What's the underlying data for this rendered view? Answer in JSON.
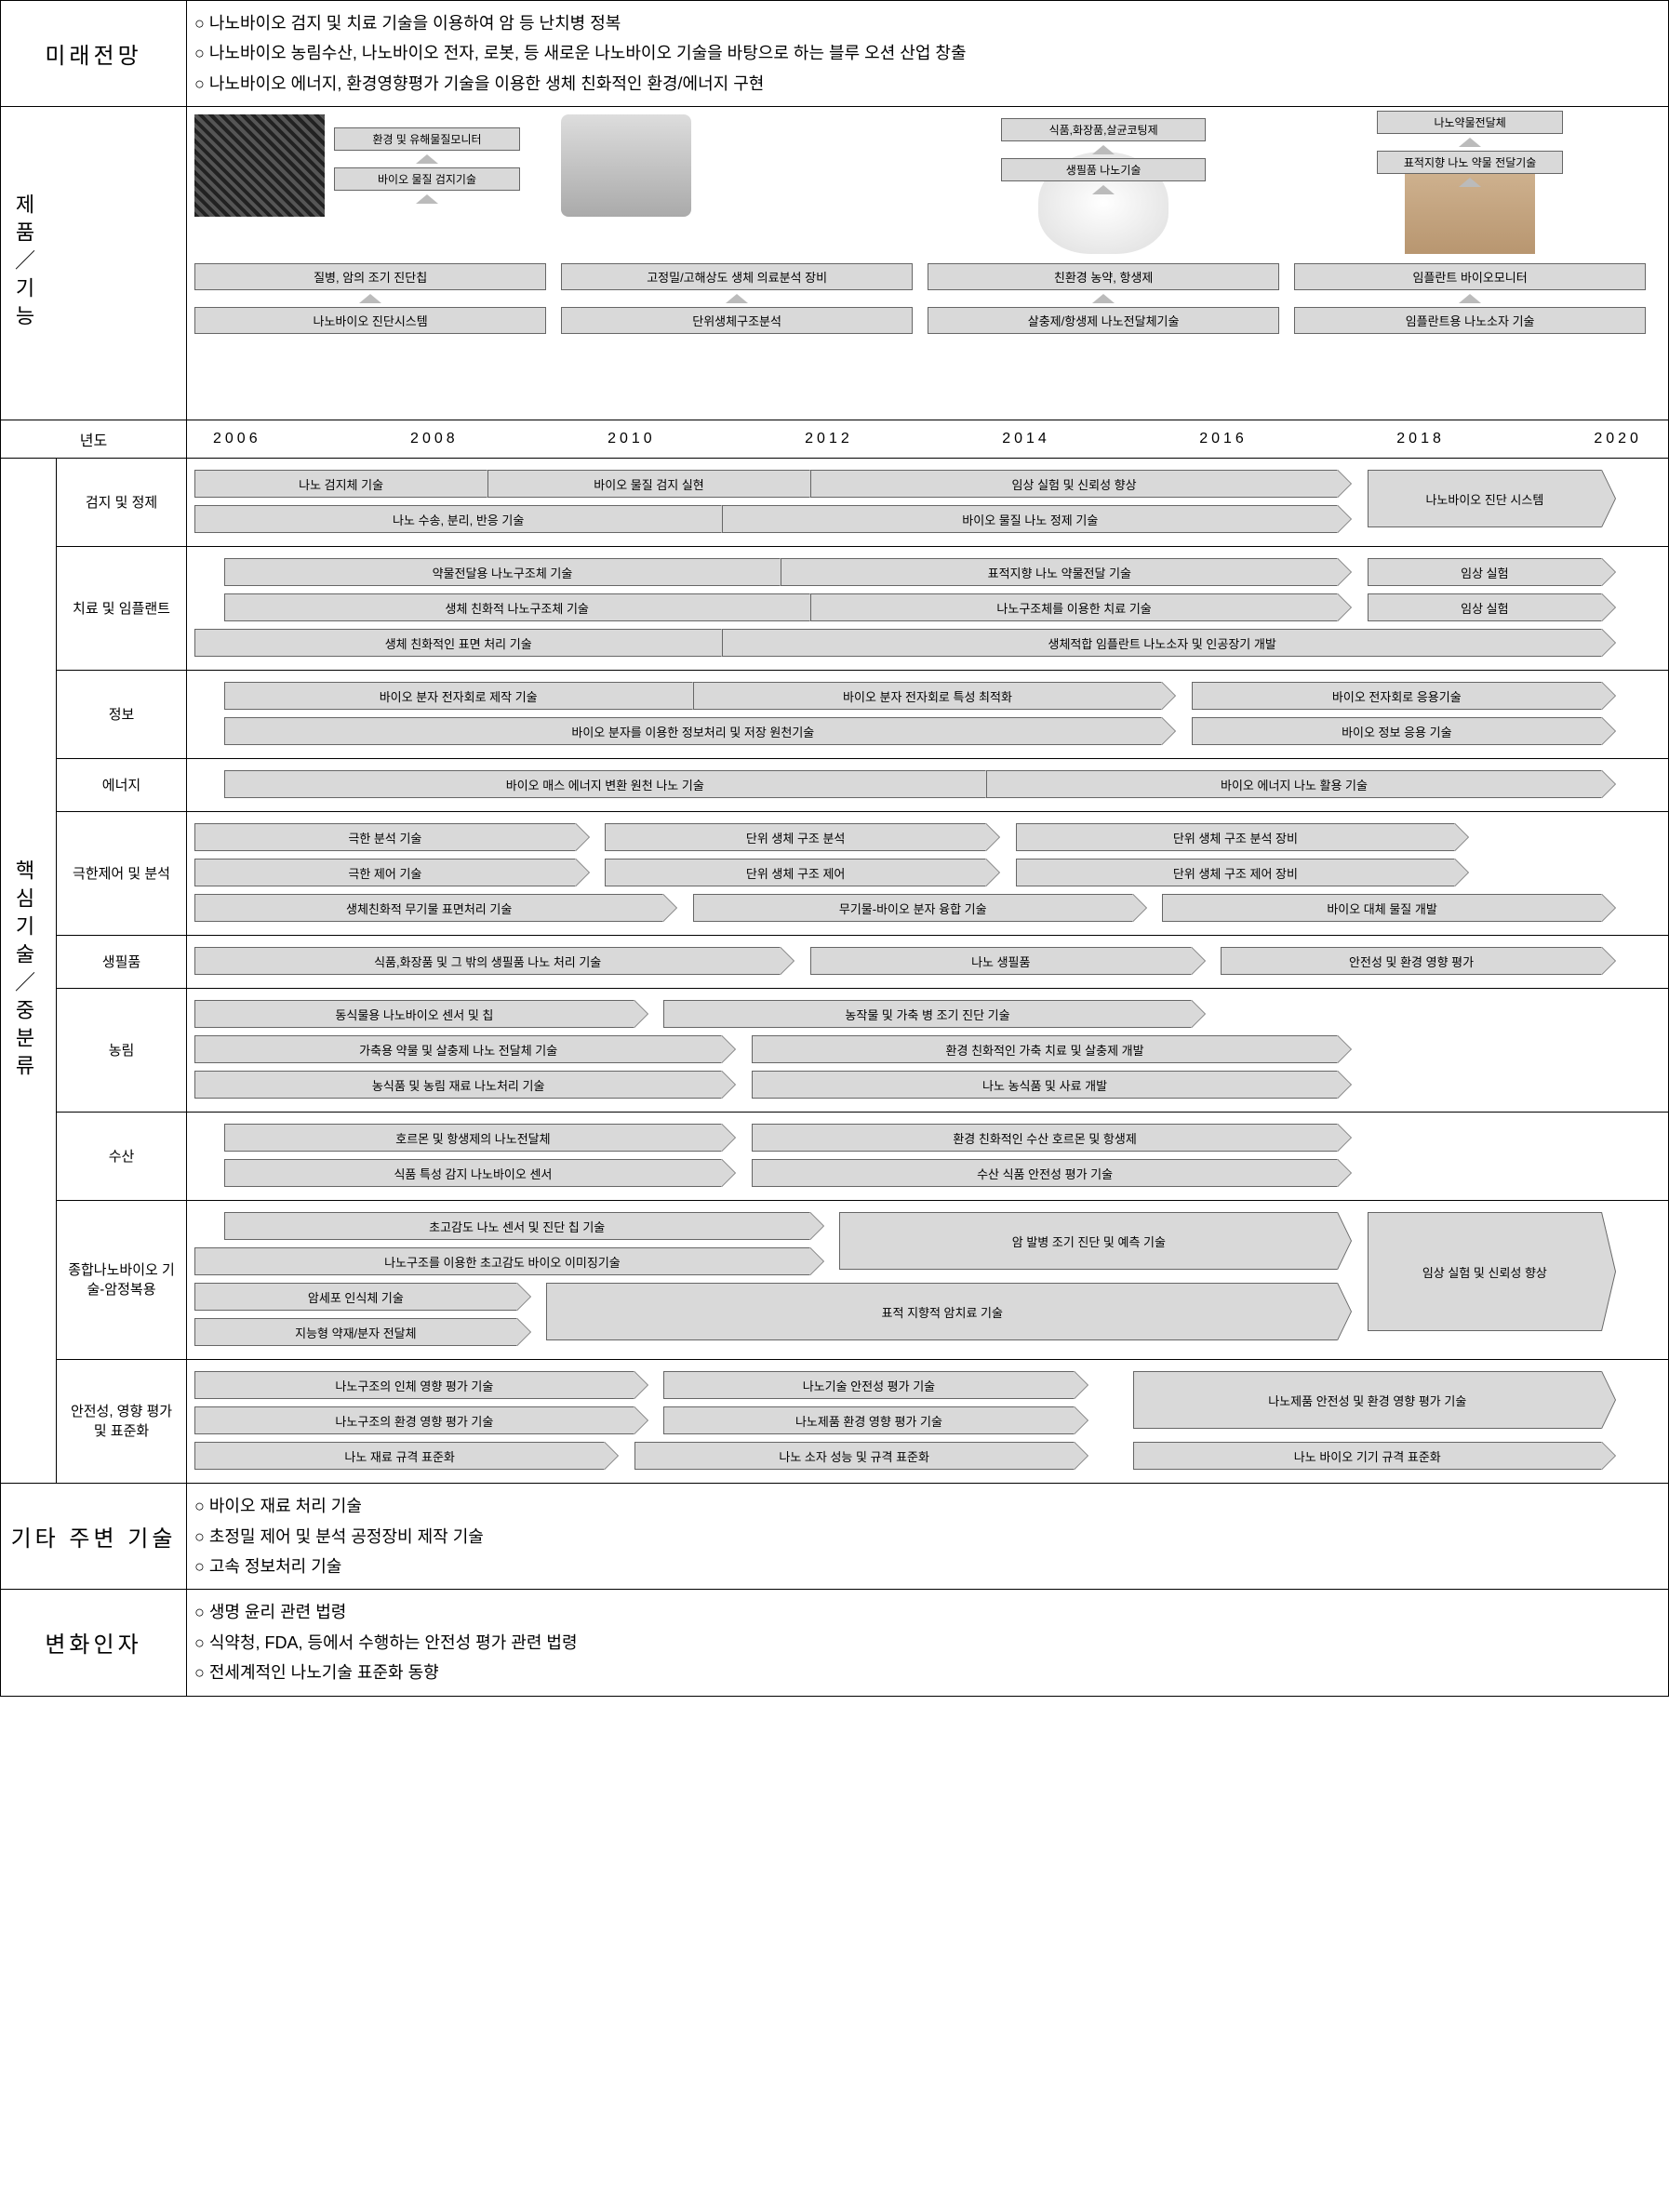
{
  "sections": {
    "future": {
      "title": "미래전망",
      "bullets": [
        "나노바이오 검지 및 치료 기술을 이용하여 암 등 난치병 정복",
        "나노바이오 농림수산, 나노바이오 전자, 로봇, 등 새로운 나노바이오 기술을 바탕으로 하는 블루 오션 산업 창출",
        "나노바이오 에너지, 환경영향평가 기술을 이용한 생체 친화적인 환경/에너지 구현"
      ]
    },
    "products": {
      "title": "제품／기능",
      "columns": [
        {
          "top_labels": [
            "환경 및 유해물질모니터",
            "바이오 물질 검지기술"
          ],
          "mid": "질병, 암의 조기 진단칩",
          "bottom": "나노바이오 진단시스템"
        },
        {
          "top_labels": [],
          "mid": "고정밀/고해상도 생체 의료분석 장비",
          "bottom": "단위생체구조분석"
        },
        {
          "top_labels": [
            "식품,화장품,살균코팅제",
            "생필품 나노기술"
          ],
          "mid": "친환경 농약, 항생제",
          "bottom": "살충제/항생제 나노전달체기술"
        },
        {
          "top_labels": [
            "나노약물전달체",
            "표적지향 나노 약물 전달기술"
          ],
          "mid": "임플란트 바이오모니터",
          "bottom": "임플란트용 나노소자 기술"
        }
      ]
    },
    "years": {
      "label": "년도",
      "values": [
        "2006",
        "2008",
        "2010",
        "2012",
        "2014",
        "2016",
        "2018",
        "2020"
      ]
    },
    "core": {
      "title": "핵심기술／중분류",
      "categories": [
        {
          "label": "검지 및 정제",
          "rows": [
            [
              {
                "text": "나노 검지체 기술",
                "start": 0,
                "end": 20
              },
              {
                "text": "바이오 물질 검지 실현",
                "start": 20,
                "end": 42
              },
              {
                "text": "임상 실험 및 신뢰성 향상",
                "start": 42,
                "end": 78
              },
              {
                "text": "나노바이오 진단 시스템",
                "start": 80,
                "end": 96,
                "tall": true
              }
            ],
            [
              {
                "text": "나노 수송, 분리, 반응 기술",
                "start": 0,
                "end": 36
              },
              {
                "text": "바이오 물질 나노 정제 기술",
                "start": 36,
                "end": 78
              }
            ]
          ]
        },
        {
          "label": "치료 및 임플랜트",
          "rows": [
            [
              {
                "text": "약물전달용 나노구조체 기술",
                "start": 2,
                "end": 40
              },
              {
                "text": "표적지향 나노 약물전달 기술",
                "start": 40,
                "end": 78
              },
              {
                "text": "임상 실험",
                "start": 80,
                "end": 96
              }
            ],
            [
              {
                "text": "생체 친화적 나노구조체 기술",
                "start": 2,
                "end": 42
              },
              {
                "text": "나노구조체를 이용한 치료 기술",
                "start": 42,
                "end": 78
              },
              {
                "text": "임상 실험",
                "start": 80,
                "end": 96
              }
            ],
            [
              {
                "text": "생체 친화적인 표면 처리 기술",
                "start": 0,
                "end": 36
              },
              {
                "text": "생체적합 임플란트 나노소자 및 인공장기 개발",
                "start": 36,
                "end": 96
              }
            ]
          ]
        },
        {
          "label": "정보",
          "rows": [
            [
              {
                "text": "바이오 분자 전자회로 제작 기술",
                "start": 2,
                "end": 34
              },
              {
                "text": "바이오 분자 전자회로 특성 최적화",
                "start": 34,
                "end": 66
              },
              {
                "text": "바이오 전자회로 응용기술",
                "start": 68,
                "end": 96
              }
            ],
            [
              {
                "text": "바이오 분자를 이용한 정보처리 및 저장 원천기술",
                "start": 2,
                "end": 66
              },
              {
                "text": "바이오 정보 응용 기술",
                "start": 68,
                "end": 96
              }
            ]
          ]
        },
        {
          "label": "에너지",
          "rows": [
            [
              {
                "text": "바이오 매스 에너지 변환 원천 나노 기술",
                "start": 2,
                "end": 54
              },
              {
                "text": "바이오 에너지 나노 활용 기술",
                "start": 54,
                "end": 96
              }
            ]
          ]
        },
        {
          "label": "극한제어 및 분석",
          "rows": [
            [
              {
                "text": "극한 분석 기술",
                "start": 0,
                "end": 26
              },
              {
                "text": "단위 생체 구조 분석",
                "start": 28,
                "end": 54
              },
              {
                "text": "단위 생체 구조 분석 장비",
                "start": 56,
                "end": 86
              }
            ],
            [
              {
                "text": "극한 제어 기술",
                "start": 0,
                "end": 26
              },
              {
                "text": "단위 생체 구조 제어",
                "start": 28,
                "end": 54
              },
              {
                "text": "단위 생체 구조 제어 장비",
                "start": 56,
                "end": 86
              }
            ],
            [
              {
                "text": "생체친화적 무기물 표면처리 기술",
                "start": 0,
                "end": 32
              },
              {
                "text": "무기물-바이오 분자 융합 기술",
                "start": 34,
                "end": 64
              },
              {
                "text": "바이오 대체 물질 개발",
                "start": 66,
                "end": 96
              }
            ]
          ]
        },
        {
          "label": "생필품",
          "rows": [
            [
              {
                "text": "식품,화장품 및 그 밖의 생필품  나노 처리 기술",
                "start": 0,
                "end": 40
              },
              {
                "text": "나노 생필품",
                "start": 42,
                "end": 68
              },
              {
                "text": "안전성 및 환경 영향 평가",
                "start": 70,
                "end": 96
              }
            ]
          ]
        },
        {
          "label": "농림",
          "rows": [
            [
              {
                "text": "동식물용 나노바이오 센서 및 칩",
                "start": 0,
                "end": 30
              },
              {
                "text": "농작물 및 가축 병 조기 진단 기술",
                "start": 32,
                "end": 68
              }
            ],
            [
              {
                "text": "가축용 약물 및 살충제 나노 전달체 기술",
                "start": 0,
                "end": 36
              },
              {
                "text": "환경 친화적인 가축 치료 및 살충제 개발",
                "start": 38,
                "end": 78
              }
            ],
            [
              {
                "text": "농식품 및 농림 재료 나노처리 기술",
                "start": 0,
                "end": 36
              },
              {
                "text": "나노 농식품 및 사료 개발",
                "start": 38,
                "end": 78
              }
            ]
          ]
        },
        {
          "label": "수산",
          "rows": [
            [
              {
                "text": "호르몬 및 항생제의 나노전달체",
                "start": 2,
                "end": 36
              },
              {
                "text": "환경 친화적인 수산 호르몬 및 항생제",
                "start": 38,
                "end": 78
              }
            ],
            [
              {
                "text": "식품 특성 감지 나노바이오 센서",
                "start": 2,
                "end": 36
              },
              {
                "text": "수산 식품 안전성 평가 기술",
                "start": 38,
                "end": 78
              }
            ]
          ]
        },
        {
          "label": "종합나노바이오 기술-암정복용",
          "rows": [
            [
              {
                "text": "초고감도 나노 센서 및 진단 칩 기술",
                "start": 2,
                "end": 42
              },
              {
                "text": "암 발병 조기 진단 및 예측 기술",
                "start": 44,
                "end": 78,
                "tall": true
              },
              {
                "text": "임상 실험 및 신뢰성 향상",
                "start": 80,
                "end": 96,
                "vtall": true
              }
            ],
            [
              {
                "text": "나노구조를 이용한 초고감도 바이오 이미징기술",
                "start": 0,
                "end": 42
              }
            ],
            [
              {
                "text": "암세포 인식체 기술",
                "start": 0,
                "end": 22
              },
              {
                "text": "표적 지향적 암치료 기술",
                "start": 24,
                "end": 78,
                "tall": true
              }
            ],
            [
              {
                "text": "지능형 약재/분자 전달체",
                "start": 0,
                "end": 22
              }
            ]
          ]
        },
        {
          "label": "안전성, 영향 평가 및 표준화",
          "rows": [
            [
              {
                "text": "나노구조의 인체 영향 평가 기술",
                "start": 0,
                "end": 30
              },
              {
                "text": "나노기술 안전성 평가 기술",
                "start": 32,
                "end": 60
              },
              {
                "text": "나노제품 안전성 및 환경 영향 평가 기술",
                "start": 64,
                "end": 96,
                "tall": true
              }
            ],
            [
              {
                "text": "나노구조의 환경 영향 평가 기술",
                "start": 0,
                "end": 30
              },
              {
                "text": "나노제품 환경 영향 평가 기술",
                "start": 32,
                "end": 60
              }
            ],
            [
              {
                "text": "나노 재료 규격 표준화",
                "start": 0,
                "end": 28
              },
              {
                "text": "나노 소자 성능 및 규격 표준화",
                "start": 30,
                "end": 60
              },
              {
                "text": "나노 바이오 기기 규격 표준화",
                "start": 64,
                "end": 96
              }
            ]
          ]
        }
      ]
    },
    "other_tech": {
      "title": "기타 주변 기술",
      "bullets": [
        "바이오 재료 처리 기술",
        "초정밀 제어 및 분석 공정장비 제작 기술",
        "고속 정보처리 기술"
      ]
    },
    "factors": {
      "title": "변화인자",
      "bullets": [
        "생명 윤리 관련 법령",
        "식약청, FDA, 등에서 수행하는 안전성 평가 관련 법령",
        "전세계적인 나노기술 표준화 동향"
      ]
    }
  },
  "colors": {
    "box_bg": "#d9d9d9",
    "box_border": "#666666",
    "arrow_fill": "#bbbbbb"
  }
}
